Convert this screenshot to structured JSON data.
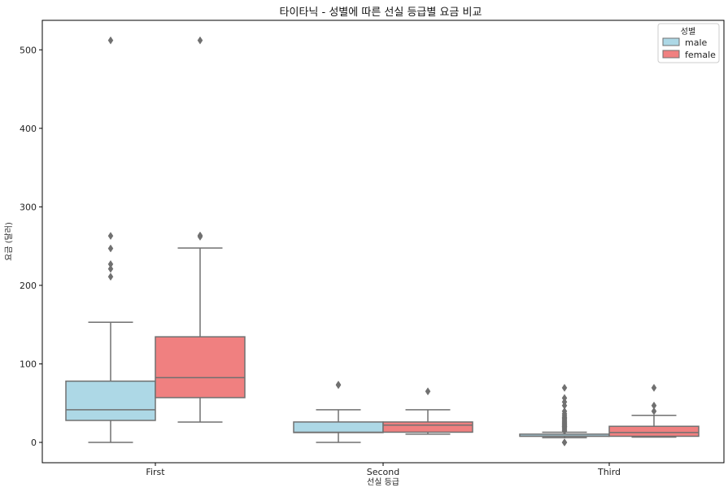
{
  "chart_data": {
    "type": "box",
    "title": "타이타닉 - 성별에 따른 선실 등급별 요금 비교",
    "xlabel": "선실 등급",
    "ylabel": "요금 (달러)",
    "categories": [
      "First",
      "Second",
      "Third"
    ],
    "yticks": [
      0,
      100,
      200,
      300,
      400,
      500
    ],
    "ylim": [
      -25,
      537
    ],
    "grid": false,
    "legend": {
      "title": "성별",
      "position": "top-right"
    },
    "series": [
      {
        "name": "male",
        "color": "#add8e6",
        "boxes": [
          {
            "category": "First",
            "min": 0,
            "q1": 28,
            "median": 41.5,
            "q3": 78,
            "max": 153,
            "outliers": [
              211,
              221,
              227,
              247,
              263,
              512
            ]
          },
          {
            "category": "Second",
            "min": 0,
            "q1": 12.5,
            "median": 13,
            "q3": 26,
            "max": 41.5,
            "outliers": [
              73,
              73.5
            ]
          },
          {
            "category": "Third",
            "min": 6,
            "q1": 7.8,
            "median": 7.9,
            "q3": 10.5,
            "max": 13,
            "outliers": [
              0,
              0,
              14.5,
              15.2,
              16.1,
              17.8,
              18.7,
              19.9,
              20.5,
              21.1,
              22.5,
              23.5,
              24.2,
              25.5,
              26.5,
              27.9,
              29.1,
              30.7,
              31.3,
              32.2,
              34.4,
              36.5,
              39.7,
              46.9,
              51.5,
              56.5,
              69.5
            ]
          }
        ]
      },
      {
        "name": "female",
        "color": "#f08080",
        "boxes": [
          {
            "category": "First",
            "min": 25.9,
            "q1": 57,
            "median": 82.5,
            "q3": 134.5,
            "max": 247.5,
            "outliers": [
              262,
              263.5,
              512
            ]
          },
          {
            "category": "Second",
            "min": 10.5,
            "q1": 13,
            "median": 22,
            "q3": 26,
            "max": 41.5,
            "outliers": [
              65
            ]
          },
          {
            "category": "Third",
            "min": 6.75,
            "q1": 7.8,
            "median": 12.5,
            "q3": 20.5,
            "max": 34.5,
            "outliers": [
              39.7,
              46.9,
              69.5
            ]
          }
        ]
      }
    ]
  }
}
